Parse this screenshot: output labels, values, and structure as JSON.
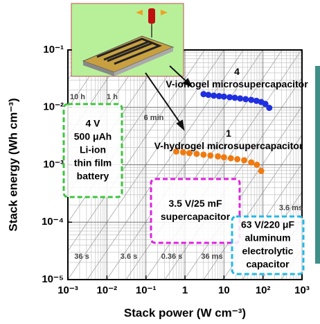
{
  "chart_data": {
    "type": "scatter",
    "xlabel": "Stack power (W cm⁻³)",
    "ylabel": "Stack energy (Wh cm⁻³)",
    "log_x": true,
    "log_y": true,
    "grid": true,
    "xlim": [
      0.001,
      1000
    ],
    "ylim": [
      1e-05,
      0.1
    ],
    "xticks": [
      {
        "value": 0.001,
        "label": "10⁻³"
      },
      {
        "value": 0.01,
        "label": "10⁻²"
      },
      {
        "value": 0.1,
        "label": "10⁻¹"
      },
      1,
      10,
      {
        "value": 100,
        "label": "10²"
      },
      {
        "value": 1000,
        "label": "10³"
      }
    ],
    "yticks": [
      {
        "value": 0.1,
        "label": "10⁻¹"
      },
      {
        "value": 0.01,
        "label": "10⁻²"
      },
      {
        "value": 0.001,
        "label": "10⁻³"
      },
      {
        "value": 0.0001,
        "label": "10⁻⁴"
      },
      {
        "value": 1e-05,
        "label": "10⁻⁵"
      }
    ],
    "series": [
      {
        "name": "4 V-ionogel microsupercapacitor",
        "color": "#1f2fe0",
        "x": [
          3,
          4,
          5.5,
          7.5,
          10,
          14,
          19,
          26,
          36,
          50,
          68,
          90,
          115,
          145
        ],
        "values": [
          0.017,
          0.0165,
          0.016,
          0.0157,
          0.0154,
          0.015,
          0.0147,
          0.0143,
          0.0139,
          0.0135,
          0.013,
          0.0124,
          0.0115,
          0.0098
        ]
      },
      {
        "name": "1 V-hydrogel microsupercapacitor",
        "color": "#f07a10",
        "x": [
          0.6,
          0.9,
          1.3,
          2,
          3,
          4.5,
          7,
          10,
          15,
          22,
          33,
          50,
          70,
          90
        ],
        "values": [
          0.0017,
          0.00165,
          0.0016,
          0.00155,
          0.0015,
          0.00145,
          0.0014,
          0.00135,
          0.0013,
          0.00125,
          0.0012,
          0.0011,
          0.001,
          0.00078
        ]
      }
    ],
    "time_labels": [
      "10 h",
      "1 h",
      "6 min",
      "36 s",
      "3.6 s",
      "0.36 s",
      "36 ms",
      "3.6 ms"
    ],
    "regions": [
      {
        "lines": [
          "4 V",
          "500 μAh",
          "Li-ion",
          "thin film",
          "battery"
        ],
        "color": "#3cc43c"
      },
      {
        "lines": [
          "3.5 V/25 mF",
          "supercapacitor"
        ],
        "color": "#e020e0"
      },
      {
        "lines": [
          "63 V/220 μF",
          "aluminum",
          "electrolytic",
          "capacitor"
        ],
        "color": "#20b8e8"
      }
    ]
  }
}
